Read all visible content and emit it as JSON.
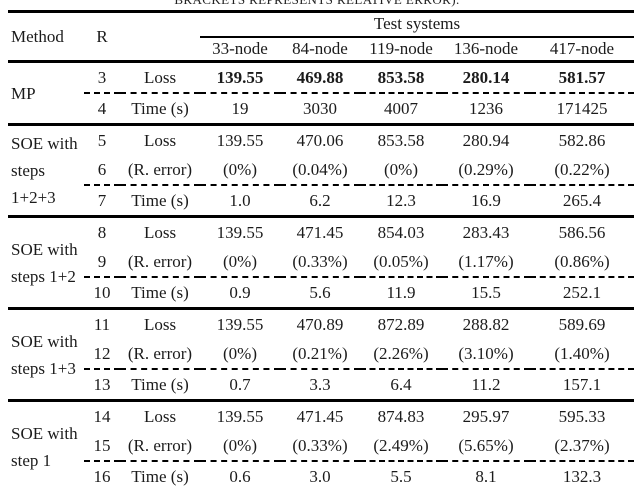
{
  "caption": "BRACKETS REPRESENTS RELATIVE ERROR).",
  "colors": {
    "background": "#ffffff",
    "text": "#1b1b1b",
    "rule": "#000000"
  },
  "table": {
    "header": {
      "method": "Method",
      "r": "R",
      "metric": "",
      "test_systems": "Test systems"
    },
    "columns": [
      "33-node",
      "84-node",
      "119-node",
      "136-node",
      "417-node"
    ],
    "groups": [
      {
        "method": "MP",
        "rows": [
          {
            "r": "3",
            "label": "Loss",
            "bold": true,
            "values": [
              "139.55",
              "469.88",
              "853.58",
              "280.14",
              "581.57"
            ]
          },
          {
            "r": "4",
            "label": "Time (s)",
            "values": [
              "19",
              "3030",
              "4007",
              "1236",
              "171425"
            ]
          }
        ]
      },
      {
        "method": "SOE with steps 1+2+3",
        "rows": [
          {
            "r": "5",
            "label": "Loss",
            "values": [
              "139.55",
              "470.06",
              "853.58",
              "280.94",
              "582.86"
            ]
          },
          {
            "r": "6",
            "label": "(R. error)",
            "values": [
              "(0%)",
              "(0.04%)",
              "(0%)",
              "(0.29%)",
              "(0.22%)"
            ]
          },
          {
            "r": "7",
            "label": "Time (s)",
            "values": [
              "1.0",
              "6.2",
              "12.3",
              "16.9",
              "265.4"
            ]
          }
        ]
      },
      {
        "method": "SOE with steps 1+2",
        "rows": [
          {
            "r": "8",
            "label": "Loss",
            "values": [
              "139.55",
              "471.45",
              "854.03",
              "283.43",
              "586.56"
            ]
          },
          {
            "r": "9",
            "label": "(R. error)",
            "values": [
              "(0%)",
              "(0.33%)",
              "(0.05%)",
              "(1.17%)",
              "(0.86%)"
            ]
          },
          {
            "r": "10",
            "label": "Time (s)",
            "values": [
              "0.9",
              "5.6",
              "11.9",
              "15.5",
              "252.1"
            ]
          }
        ]
      },
      {
        "method": "SOE with steps 1+3",
        "rows": [
          {
            "r": "11",
            "label": "Loss",
            "values": [
              "139.55",
              "470.89",
              "872.89",
              "288.82",
              "589.69"
            ]
          },
          {
            "r": "12",
            "label": "(R. error)",
            "values": [
              "(0%)",
              "(0.21%)",
              "(2.26%)",
              "(3.10%)",
              "(1.40%)"
            ]
          },
          {
            "r": "13",
            "label": "Time (s)",
            "values": [
              "0.7",
              "3.3",
              "6.4",
              "11.2",
              "157.1"
            ]
          }
        ]
      },
      {
        "method": "SOE with step 1",
        "rows": [
          {
            "r": "14",
            "label": "Loss",
            "values": [
              "139.55",
              "471.45",
              "874.83",
              "295.97",
              "595.33"
            ]
          },
          {
            "r": "15",
            "label": "(R. error)",
            "values": [
              "(0%)",
              "(0.33%)",
              "(2.49%)",
              "(5.65%)",
              "(2.37%)"
            ]
          },
          {
            "r": "16",
            "label": "Time (s)",
            "values": [
              "0.6",
              "3.0",
              "5.5",
              "8.1",
              "132.3"
            ]
          }
        ]
      }
    ]
  }
}
